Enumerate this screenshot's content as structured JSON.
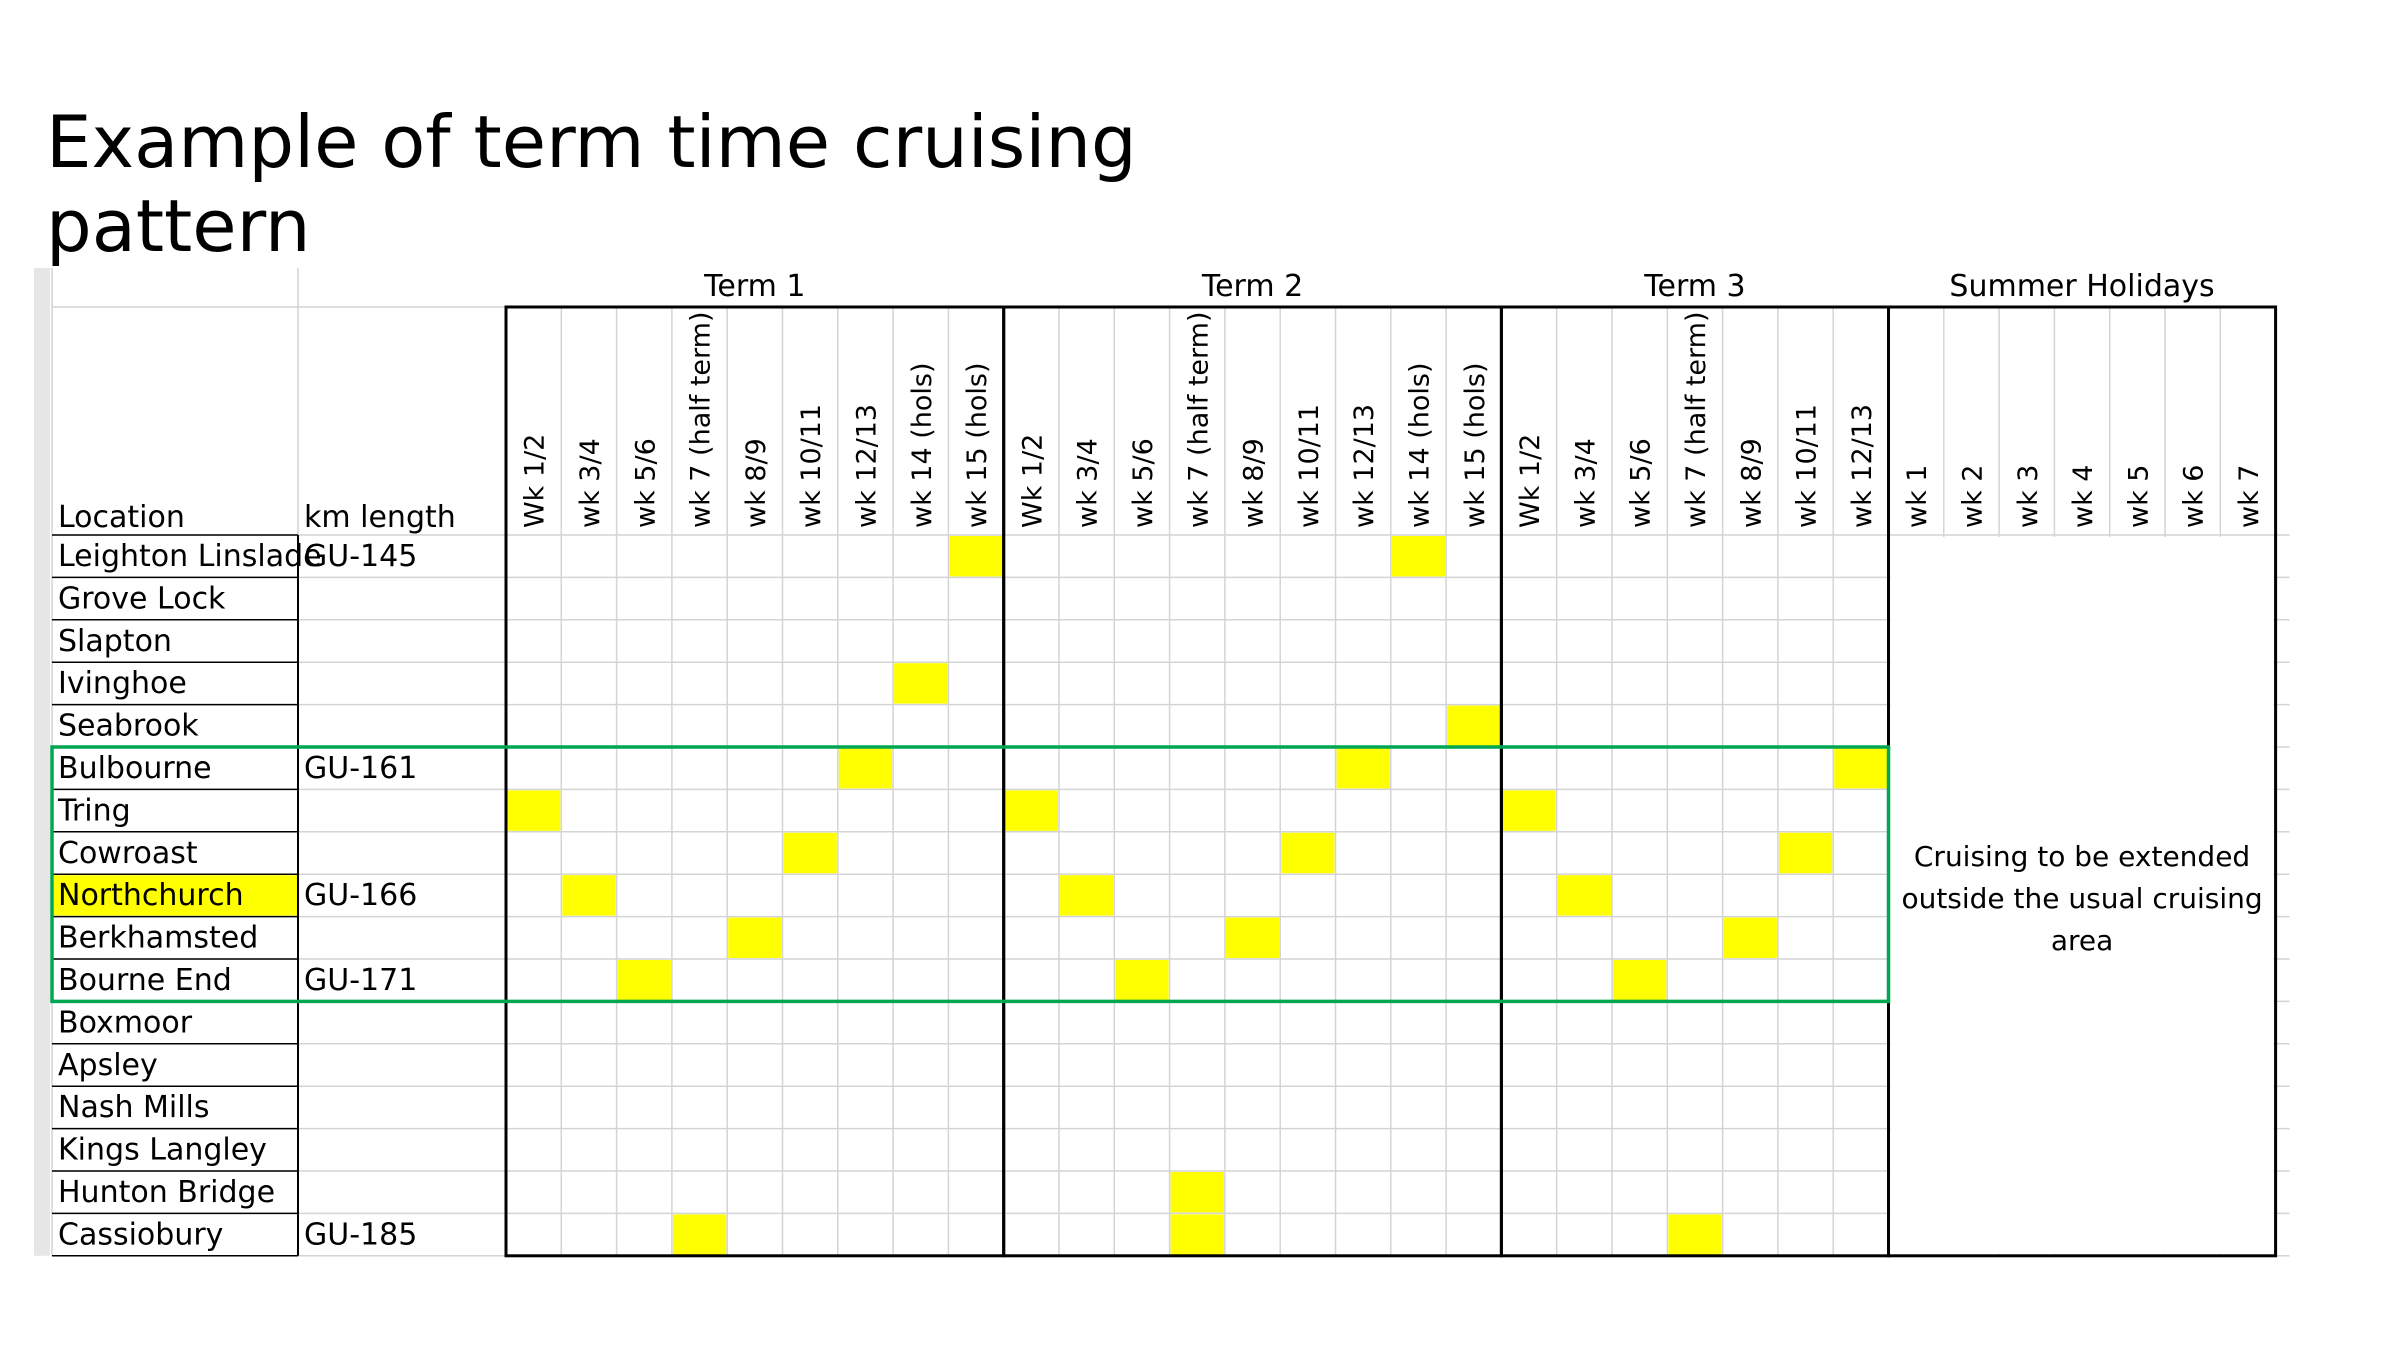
{
  "title": "Example of term time cruising pattern",
  "headers": {
    "location": "Location",
    "km_length": "km length"
  },
  "groups": [
    {
      "label": "Term 1",
      "weeks": [
        "Wk 1/2",
        "wk 3/4",
        "wk 5/6",
        "wk 7 (half term)",
        "wk 8/9",
        "wk 10/11",
        "wk 12/13",
        "wk 14 (hols)",
        "wk 15 (hols)"
      ]
    },
    {
      "label": "Term 2",
      "weeks": [
        "Wk 1/2",
        "wk 3/4",
        "wk 5/6",
        "wk 7 (half term)",
        "wk 8/9",
        "wk 10/11",
        "wk 12/13",
        "wk 14 (hols)",
        "wk 15 (hols)"
      ]
    },
    {
      "label": "Term 3",
      "weeks": [
        "Wk 1/2",
        "wk 3/4",
        "wk 5/6",
        "wk 7 (half term)",
        "wk 8/9",
        "wk 10/11",
        "wk 12/13"
      ]
    },
    {
      "label": "Summer Holidays",
      "weeks": [
        "wk 1",
        "wk 2",
        "wk 3",
        "wk 4",
        "wk 5",
        "wk 6",
        "wk 7"
      ]
    }
  ],
  "rows": [
    {
      "location": "Leighton Linslade",
      "km": "GU-145",
      "highlight": false
    },
    {
      "location": "Grove Lock",
      "km": "",
      "highlight": false
    },
    {
      "location": "Slapton",
      "km": "",
      "highlight": false
    },
    {
      "location": "Ivinghoe",
      "km": "",
      "highlight": false
    },
    {
      "location": "Seabrook",
      "km": "",
      "highlight": false
    },
    {
      "location": "Bulbourne",
      "km": "GU-161",
      "highlight": false
    },
    {
      "location": "Tring",
      "km": "",
      "highlight": false
    },
    {
      "location": "Cowroast",
      "km": "",
      "highlight": false
    },
    {
      "location": "Northchurch",
      "km": "GU-166",
      "highlight": true
    },
    {
      "location": "Berkhamsted",
      "km": "",
      "highlight": false
    },
    {
      "location": "Bourne End",
      "km": "GU-171",
      "highlight": false
    },
    {
      "location": "Boxmoor",
      "km": "",
      "highlight": false
    },
    {
      "location": "Apsley",
      "km": "",
      "highlight": false
    },
    {
      "location": "Nash Mills",
      "km": "",
      "highlight": false
    },
    {
      "location": "Kings Langley",
      "km": "",
      "highlight": false
    },
    {
      "location": "Hunton Bridge",
      "km": "",
      "highlight": false
    },
    {
      "location": "Cassiobury",
      "km": "GU-185",
      "highlight": false
    }
  ],
  "schedule": [
    {
      "term": "Term 1",
      "week": "wk 15 (hols)",
      "location": "Leighton Linslade"
    },
    {
      "term": "Term 1",
      "week": "wk 14 (hols)",
      "location": "Ivinghoe"
    },
    {
      "term": "Term 1",
      "week": "wk 12/13",
      "location": "Bulbourne"
    },
    {
      "term": "Term 1",
      "week": "Wk 1/2",
      "location": "Tring"
    },
    {
      "term": "Term 1",
      "week": "wk 10/11",
      "location": "Cowroast"
    },
    {
      "term": "Term 1",
      "week": "wk 3/4",
      "location": "Northchurch"
    },
    {
      "term": "Term 1",
      "week": "wk 8/9",
      "location": "Berkhamsted"
    },
    {
      "term": "Term 1",
      "week": "wk 5/6",
      "location": "Bourne End"
    },
    {
      "term": "Term 1",
      "week": "wk 7 (half term)",
      "location": "Cassiobury"
    },
    {
      "term": "Term 2",
      "week": "wk 14 (hols)",
      "location": "Leighton Linslade"
    },
    {
      "term": "Term 2",
      "week": "wk 15 (hols)",
      "location": "Seabrook"
    },
    {
      "term": "Term 2",
      "week": "wk 12/13",
      "location": "Bulbourne"
    },
    {
      "term": "Term 2",
      "week": "Wk 1/2",
      "location": "Tring"
    },
    {
      "term": "Term 2",
      "week": "wk 10/11",
      "location": "Cowroast"
    },
    {
      "term": "Term 2",
      "week": "wk 3/4",
      "location": "Northchurch"
    },
    {
      "term": "Term 2",
      "week": "wk 8/9",
      "location": "Berkhamsted"
    },
    {
      "term": "Term 2",
      "week": "wk 5/6",
      "location": "Bourne End"
    },
    {
      "term": "Term 2",
      "week": "wk 7 (half term)",
      "location": "Hunton Bridge"
    },
    {
      "term": "Term 2",
      "week": "wk 7 (half term)",
      "location": "Cassiobury"
    },
    {
      "term": "Term 3",
      "week": "wk 12/13",
      "location": "Bulbourne"
    },
    {
      "term": "Term 3",
      "week": "Wk 1/2",
      "location": "Tring"
    },
    {
      "term": "Term 3",
      "week": "wk 10/11",
      "location": "Cowroast"
    },
    {
      "term": "Term 3",
      "week": "wk 3/4",
      "location": "Northchurch"
    },
    {
      "term": "Term 3",
      "week": "wk 8/9",
      "location": "Berkhamsted"
    },
    {
      "term": "Term 3",
      "week": "wk 5/6",
      "location": "Bourne End"
    },
    {
      "term": "Term 3",
      "week": "wk 7 (half term)",
      "location": "Cassiobury"
    }
  ],
  "summer_note": "Cruising to be extended outside the usual cruising area",
  "colors": {
    "highlight": "#ffff00",
    "outline": "#00a651",
    "grid": "#d4d4d4",
    "border": "#000000"
  }
}
